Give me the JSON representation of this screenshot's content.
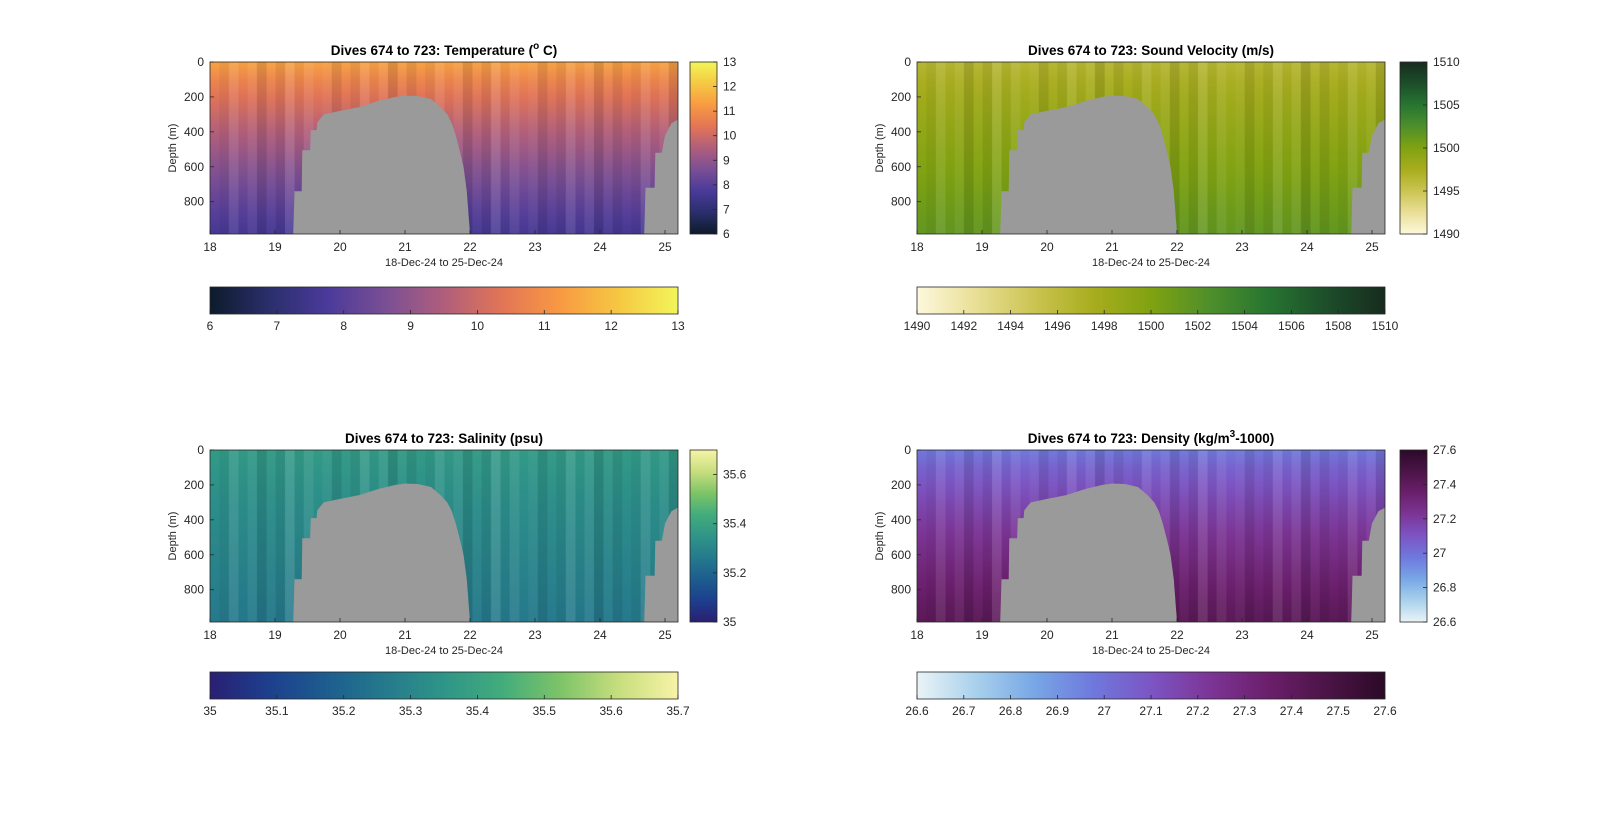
{
  "chart_data": [
    {
      "type": "heatmap",
      "title": "Dives 674 to 723: Temperature (",
      "title_sup": "o",
      "title_tail": " C)",
      "xlabel": "18-Dec-24 to 25-Dec-24",
      "ylabel": "Depth (m)",
      "x_ticks": [
        "18",
        "19",
        "20",
        "21",
        "22",
        "23",
        "24",
        "25"
      ],
      "y_ticks": [
        "0",
        "200",
        "400",
        "600",
        "800"
      ],
      "xlim": [
        18,
        25.2
      ],
      "ylim": [
        0,
        985
      ],
      "clim": [
        6,
        13
      ],
      "colorbar_ticks": [
        "6",
        "7",
        "8",
        "9",
        "10",
        "11",
        "12",
        "13"
      ],
      "colormap": [
        "#0d1b2b",
        "#2a2e6b",
        "#4a3a9a",
        "#7a4f94",
        "#b05e7c",
        "#e27556",
        "#f89a42",
        "#f6c843",
        "#f2f55a"
      ],
      "surface_value": 11.4,
      "bottom_value": 7.6
    },
    {
      "type": "heatmap",
      "title": "Dives 674 to 723: Sound Velocity (m/s)",
      "title_sup": "",
      "title_tail": "",
      "xlabel": "18-Dec-24 to 25-Dec-24",
      "ylabel": "Depth (m)",
      "x_ticks": [
        "18",
        "19",
        "20",
        "21",
        "22",
        "23",
        "24",
        "25"
      ],
      "y_ticks": [
        "0",
        "200",
        "400",
        "600",
        "800"
      ],
      "xlim": [
        18,
        25.2
      ],
      "ylim": [
        0,
        985
      ],
      "clim": [
        1490,
        1510
      ],
      "colorbar_ticks": [
        "1490",
        "1495",
        "1500",
        "1505",
        "1510"
      ],
      "colorbar_h_ticks": [
        "1490",
        "1492",
        "1494",
        "1496",
        "1498",
        "1500",
        "1502",
        "1504",
        "1506",
        "1508",
        "1510"
      ],
      "colormap": [
        "#fdf8dd",
        "#e9df96",
        "#cbc452",
        "#a8ad1e",
        "#80a211",
        "#4e8f2b",
        "#277531",
        "#1c4e2a",
        "#182b1e"
      ],
      "surface_value": 1496.5,
      "bottom_value": 1501.5
    },
    {
      "type": "heatmap",
      "title": "Dives 674 to 723: Salinity (psu)",
      "title_sup": "",
      "title_tail": "",
      "xlabel": "18-Dec-24 to 25-Dec-24",
      "ylabel": "Depth (m)",
      "x_ticks": [
        "18",
        "19",
        "20",
        "21",
        "22",
        "23",
        "24",
        "25"
      ],
      "y_ticks": [
        "0",
        "200",
        "400",
        "600",
        "800"
      ],
      "xlim": [
        18,
        25.2
      ],
      "ylim": [
        0,
        985
      ],
      "clim": [
        35,
        35.7
      ],
      "colorbar_ticks": [
        "35",
        "35.2",
        "35.4",
        "35.6"
      ],
      "colorbar_h_ticks": [
        "35",
        "35.1",
        "35.2",
        "35.3",
        "35.4",
        "35.5",
        "35.6",
        "35.7"
      ],
      "colormap": [
        "#2a1f73",
        "#1d3f8d",
        "#1d5d8f",
        "#257a8c",
        "#2f9588",
        "#43ac7c",
        "#7ec468",
        "#c8de7e",
        "#f7f3a7"
      ],
      "surface_value": 35.37,
      "bottom_value": 35.26
    },
    {
      "type": "heatmap",
      "title": "Dives 674 to 723: Density (kg/m",
      "title_sup": "3",
      "title_tail": "-1000)",
      "xlabel": "18-Dec-24 to 25-Dec-24",
      "ylabel": "Depth (m)",
      "x_ticks": [
        "18",
        "19",
        "20",
        "21",
        "22",
        "23",
        "24",
        "25"
      ],
      "y_ticks": [
        "0",
        "200",
        "400",
        "600",
        "800"
      ],
      "xlim": [
        18,
        25.2
      ],
      "ylim": [
        0,
        985
      ],
      "clim": [
        26.6,
        27.6
      ],
      "colorbar_ticks": [
        "26.6",
        "26.8",
        "27",
        "27.2",
        "27.4",
        "27.6"
      ],
      "colorbar_h_ticks": [
        "26.6",
        "26.7",
        "26.8",
        "26.9",
        "27",
        "27.1",
        "27.2",
        "27.3",
        "27.4",
        "27.5",
        "27.6"
      ],
      "colormap": [
        "#eaf4f6",
        "#a9d1ec",
        "#78a7e6",
        "#6f79dd",
        "#7c55c4",
        "#7c3596",
        "#6b1f6b",
        "#4c1447",
        "#2b0a27"
      ],
      "surface_value": 26.98,
      "bottom_value": 27.42
    }
  ]
}
